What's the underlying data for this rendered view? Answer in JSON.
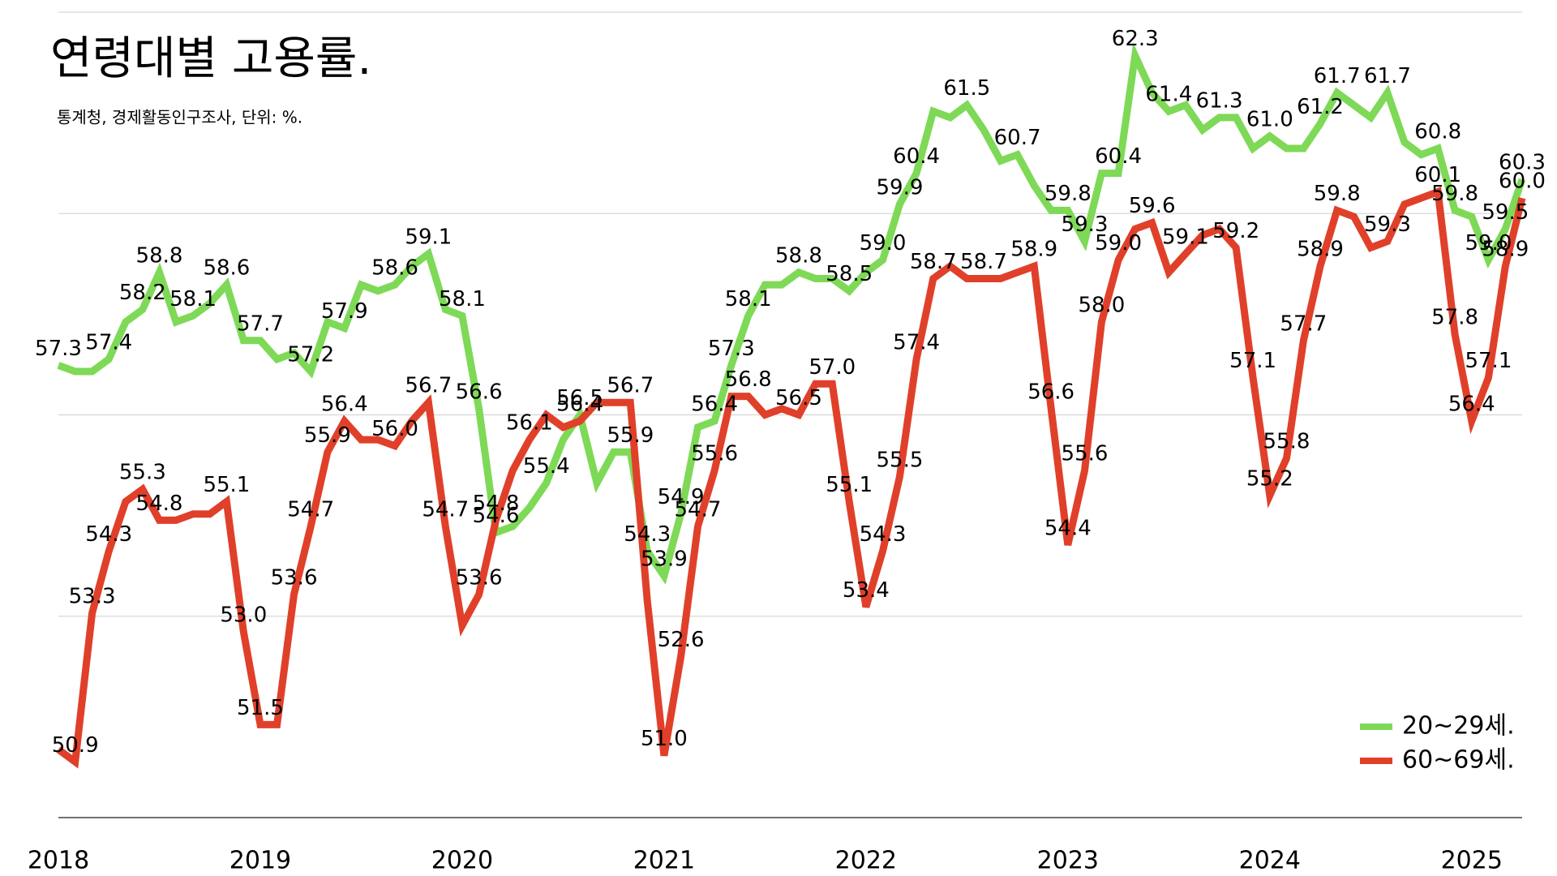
{
  "chart_data": {
    "type": "line",
    "title": "연령대별 고용률.",
    "subtitle": "통계청, 경제활동인구조사, 단위: %.",
    "x": [
      2018,
      2018.083,
      2018.167,
      2018.25,
      2018.333,
      2018.417,
      2018.5,
      2018.583,
      2018.667,
      2018.75,
      2018.833,
      2018.917,
      2019,
      2019.083,
      2019.167,
      2019.25,
      2019.333,
      2019.417,
      2019.5,
      2019.583,
      2019.667,
      2019.75,
      2019.833,
      2019.917,
      2020,
      2020.083,
      2020.167,
      2020.25,
      2020.333,
      2020.417,
      2020.5,
      2020.583,
      2020.667,
      2020.75,
      2020.833,
      2020.917,
      2021,
      2021.083,
      2021.167,
      2021.25,
      2021.333,
      2021.417,
      2021.5,
      2021.583,
      2021.667,
      2021.75,
      2021.833,
      2021.917,
      2022,
      2022.083,
      2022.167,
      2022.25,
      2022.333,
      2022.417,
      2022.5,
      2022.583,
      2022.667,
      2022.75,
      2022.833,
      2022.917,
      2023,
      2023.083,
      2023.167,
      2023.25,
      2023.333,
      2023.417,
      2023.5,
      2023.583,
      2023.667,
      2023.75,
      2023.833,
      2023.917,
      2024,
      2024.083,
      2024.167,
      2024.25,
      2024.333,
      2024.417,
      2024.5,
      2024.583,
      2024.667,
      2024.75,
      2024.833,
      2024.917,
      2025,
      2025.083,
      2025.167,
      2025.25
    ],
    "xlim": [
      2018,
      2025.25
    ],
    "xticks": [
      2018,
      2019,
      2020,
      2021,
      2022,
      2023,
      2024,
      2025
    ],
    "ylim": [
      50,
      63
    ],
    "yticks": [
      50,
      53.25,
      56.5,
      59.75,
      63
    ],
    "grid": true,
    "legend": "lower right",
    "series": [
      {
        "name": "20~29세.",
        "color": "#7ed957",
        "values": [
          57.3,
          57.2,
          57.2,
          57.4,
          58.0,
          58.2,
          58.8,
          58.0,
          58.1,
          58.3,
          58.6,
          57.7,
          57.7,
          57.4,
          57.5,
          57.2,
          58.0,
          57.9,
          58.6,
          58.5,
          58.6,
          58.9,
          59.1,
          58.2,
          58.1,
          56.6,
          54.6,
          54.7,
          55.0,
          55.4,
          56.1,
          56.5,
          55.4,
          55.9,
          55.9,
          54.3,
          53.9,
          54.9,
          56.3,
          56.4,
          57.3,
          58.1,
          58.6,
          58.6,
          58.8,
          58.7,
          58.7,
          58.5,
          58.8,
          59.0,
          59.9,
          60.4,
          61.4,
          61.3,
          61.5,
          61.1,
          60.6,
          60.7,
          60.2,
          59.8,
          59.8,
          59.3,
          60.4,
          60.4,
          62.3,
          61.7,
          61.4,
          61.5,
          61.1,
          61.3,
          61.3,
          60.8,
          61.0,
          60.8,
          60.8,
          61.2,
          61.7,
          61.5,
          61.3,
          61.7,
          60.9,
          60.7,
          60.8,
          59.8,
          59.7,
          59.0,
          59.5,
          60.3
        ],
        "value_labels": [
          "57.3",
          null,
          null,
          "57.4",
          null,
          "58.2",
          "58.8",
          null,
          "58.1",
          null,
          "58.6",
          null,
          "57.7",
          null,
          null,
          "57.2",
          null,
          "57.9",
          null,
          null,
          "58.6",
          null,
          "59.1",
          null,
          "58.1",
          "56.6",
          "54.6",
          null,
          null,
          "55.4",
          null,
          "56.5",
          null,
          null,
          "55.9",
          "54.3",
          "53.9",
          "54.9",
          null,
          "56.4",
          "57.3",
          "58.1",
          null,
          null,
          "58.8",
          null,
          null,
          "58.5",
          null,
          "59.0",
          "59.9",
          "60.4",
          null,
          null,
          "61.5",
          null,
          null,
          "60.7",
          null,
          null,
          "59.8",
          "59.3",
          null,
          "60.4",
          "62.3",
          null,
          "61.4",
          null,
          null,
          "61.3",
          null,
          null,
          "61.0",
          null,
          null,
          "61.2",
          "61.7",
          null,
          null,
          "61.7",
          null,
          null,
          "60.8",
          "59.8",
          null,
          "59.0",
          "59.5",
          "60.3"
        ]
      },
      {
        "name": "60~69세.",
        "color": "#e0402a",
        "values": [
          51.1,
          50.9,
          53.3,
          54.3,
          55.1,
          55.3,
          54.8,
          54.8,
          54.9,
          54.9,
          55.1,
          53.0,
          51.5,
          51.5,
          53.6,
          54.7,
          55.9,
          56.4,
          56.1,
          56.1,
          56.0,
          56.4,
          56.7,
          54.7,
          53.1,
          53.6,
          54.8,
          55.6,
          56.1,
          56.5,
          56.3,
          56.4,
          56.7,
          56.7,
          56.7,
          53.5,
          51.0,
          52.6,
          54.7,
          55.6,
          56.8,
          56.8,
          56.5,
          56.6,
          56.5,
          57.0,
          57.0,
          55.1,
          53.4,
          54.3,
          55.5,
          57.4,
          58.7,
          58.9,
          58.7,
          58.7,
          58.7,
          58.8,
          58.9,
          56.6,
          54.4,
          55.6,
          58.0,
          59.0,
          59.5,
          59.6,
          58.8,
          59.1,
          59.4,
          59.5,
          59.2,
          57.1,
          55.2,
          55.8,
          57.7,
          58.9,
          59.8,
          59.7,
          59.2,
          59.3,
          59.9,
          60.0,
          60.1,
          57.8,
          56.4,
          57.1,
          58.9,
          60.0
        ],
        "value_labels": [
          null,
          "50.9",
          "53.3",
          "54.3",
          null,
          "55.3",
          "54.8",
          null,
          null,
          null,
          "55.1",
          "53.0",
          "51.5",
          null,
          "53.6",
          "54.7",
          "55.9",
          "56.4",
          null,
          null,
          "56.0",
          null,
          "56.7",
          "54.7",
          null,
          "53.6",
          "54.8",
          null,
          "56.1",
          null,
          null,
          "56.4",
          null,
          null,
          "56.7",
          null,
          "51.0",
          "52.6",
          "54.7",
          "55.6",
          null,
          "56.8",
          null,
          null,
          "56.5",
          null,
          "57.0",
          "55.1",
          "53.4",
          "54.3",
          "55.5",
          "57.4",
          "58.7",
          null,
          null,
          "58.7",
          null,
          null,
          "58.9",
          "56.6",
          "54.4",
          "55.6",
          "58.0",
          "59.0",
          null,
          "59.6",
          null,
          "59.1",
          null,
          null,
          "59.2",
          "57.1",
          "55.2",
          "55.8",
          "57.7",
          "58.9",
          "59.8",
          null,
          null,
          "59.3",
          null,
          null,
          "60.1",
          "57.8",
          "56.4",
          "57.1",
          "58.9",
          "60.0"
        ]
      }
    ]
  }
}
